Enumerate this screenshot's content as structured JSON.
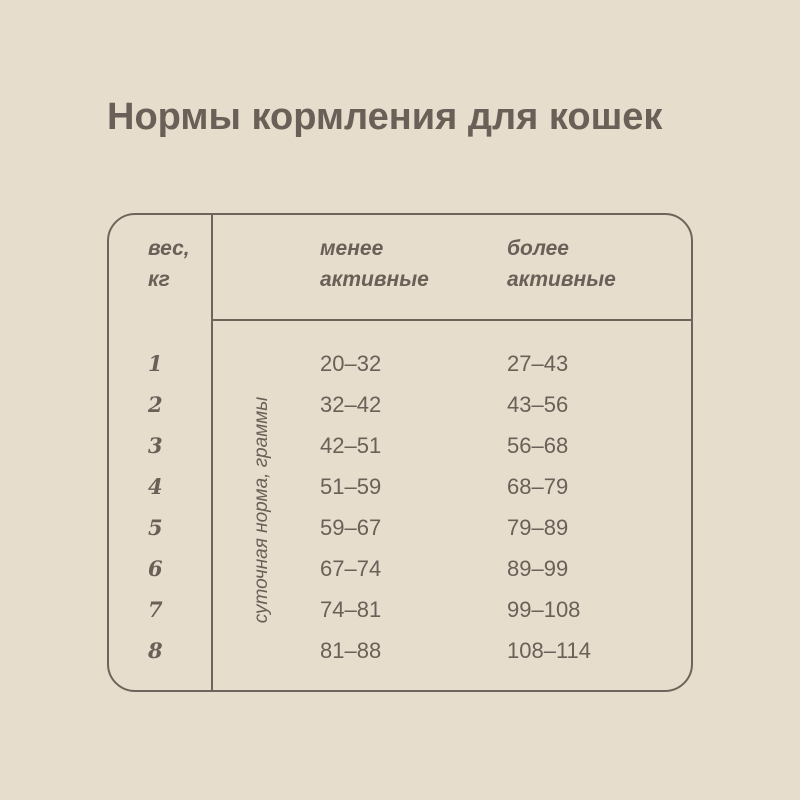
{
  "title": "Нормы кормления для кошек",
  "headers": {
    "weight": [
      "вес,",
      "кг"
    ],
    "less_active": [
      "менее",
      "активные"
    ],
    "more_active": [
      "более",
      "активные"
    ]
  },
  "side_label": "суточная норма, граммы",
  "rows": [
    {
      "weight": "1",
      "less": "20–32",
      "more": "27–43"
    },
    {
      "weight": "2",
      "less": "32–42",
      "more": "43–56"
    },
    {
      "weight": "3",
      "less": "42–51",
      "more": "56–68"
    },
    {
      "weight": "4",
      "less": "51–59",
      "more": "68–79"
    },
    {
      "weight": "5",
      "less": "59–67",
      "more": "79–89"
    },
    {
      "weight": "6",
      "less": "67–74",
      "more": "89–99"
    },
    {
      "weight": "7",
      "less": "74–81",
      "more": "99–108"
    },
    {
      "weight": "8",
      "less": "81–88",
      "more": "108–114"
    }
  ],
  "colors": {
    "background": "#e6ddcc",
    "text": "#6a6058",
    "lines": "#6e645b"
  }
}
